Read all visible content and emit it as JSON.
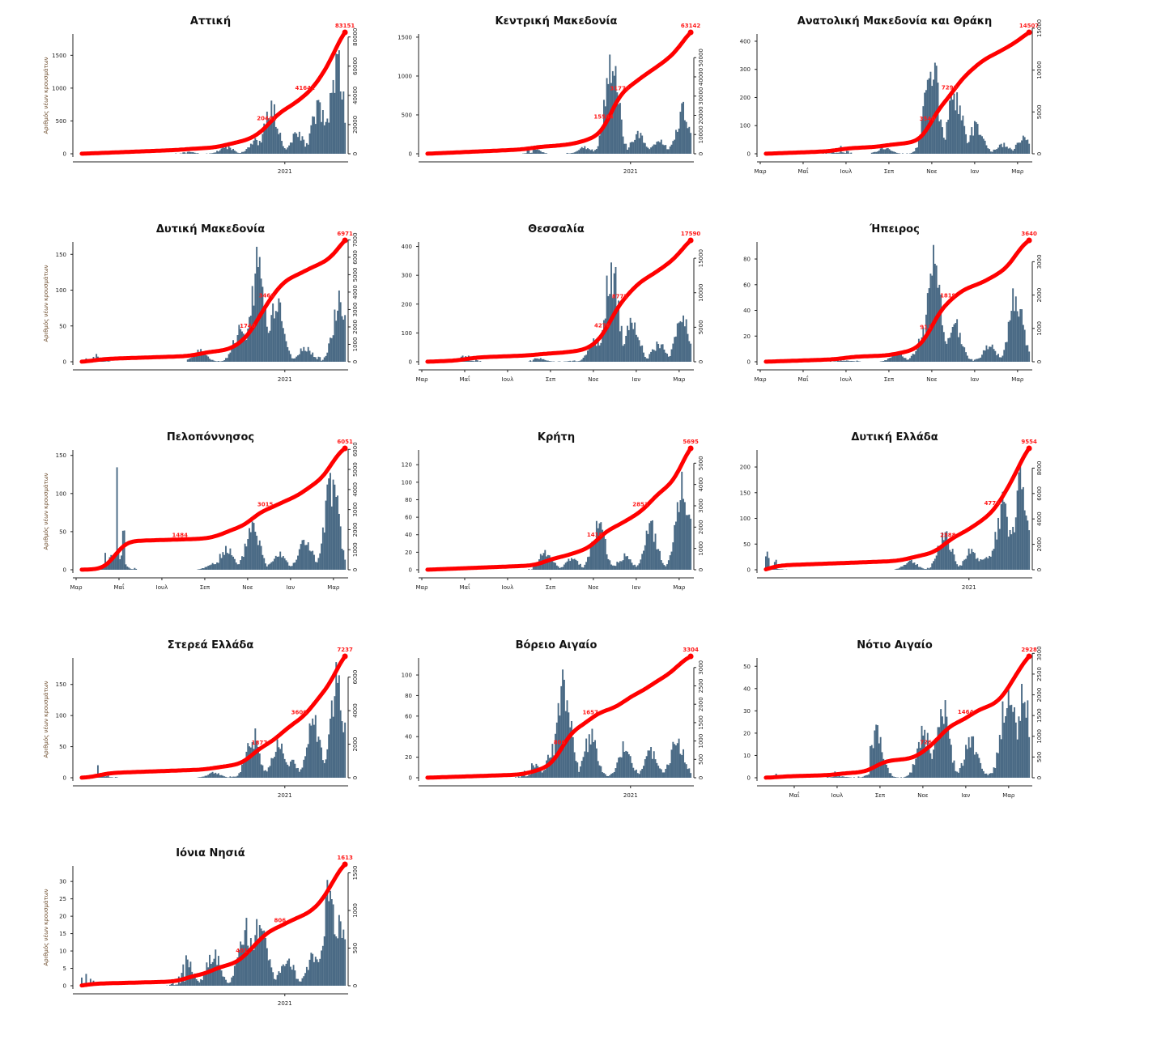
{
  "colors": {
    "bars": "#4a6a85",
    "cumulative_line": "#ff0000",
    "label": "#ff1a1a"
  },
  "chart_data": [
    {
      "type": "bar+line",
      "title": "Αττική",
      "ylabel": "Αριθμός νέων κρουσμάτων",
      "xticks": [
        "2021"
      ],
      "xtick_mode": "year",
      "left_ticks": [
        0,
        500,
        1000,
        1500
      ],
      "left_max": 1800,
      "right_ticks": [
        0,
        20000,
        40000,
        60000,
        80000
      ],
      "right_max": 83151,
      "labels": [
        "20441",
        "41641",
        "83151"
      ],
      "peaks": [
        [
          0.4,
          40
        ],
        [
          0.55,
          130
        ],
        [
          0.66,
          250
        ],
        [
          0.72,
          860
        ],
        [
          0.82,
          380
        ],
        [
          0.9,
          900
        ],
        [
          0.97,
          1700
        ]
      ]
    },
    {
      "type": "bar+line",
      "title": "Κεντρική Μακεδονία",
      "ylabel": "",
      "xticks": [
        "2021"
      ],
      "xtick_mode": "year",
      "left_ticks": [
        0,
        500,
        1000,
        1500
      ],
      "left_max": 1520,
      "right_ticks": [
        0,
        10000,
        20000,
        30000,
        40000,
        50000
      ],
      "right_max": 63142,
      "labels": [
        "15584",
        "31770",
        "63142"
      ],
      "peaks": [
        [
          0.4,
          80
        ],
        [
          0.6,
          100
        ],
        [
          0.7,
          1500
        ],
        [
          0.8,
          300
        ],
        [
          0.88,
          200
        ],
        [
          0.97,
          680
        ]
      ]
    },
    {
      "type": "bar+line",
      "title": "Ανατολική Μακεδονία και Θράκη",
      "ylabel": "",
      "xticks": [
        "Μαρ",
        "Μαΐ",
        "Ιουλ",
        "Σεπ",
        "Νοε",
        "Ιαν",
        "Μαρ"
      ],
      "xtick_mode": "months",
      "left_ticks": [
        0,
        100,
        200,
        300,
        400
      ],
      "left_max": 420,
      "right_ticks": [
        0,
        5000,
        10000,
        15000
      ],
      "right_max": 14507,
      "labels": [
        "3540",
        "7290",
        "14507"
      ],
      "peaks": [
        [
          0.28,
          30
        ],
        [
          0.45,
          25
        ],
        [
          0.63,
          410
        ],
        [
          0.72,
          280
        ],
        [
          0.8,
          130
        ],
        [
          0.9,
          40
        ],
        [
          0.98,
          80
        ]
      ]
    },
    {
      "type": "bar+line",
      "title": "Δυτική Μακεδονία",
      "ylabel": "Αριθμός νέων κρουσμάτων",
      "xticks": [
        "2021"
      ],
      "xtick_mode": "year",
      "left_ticks": [
        0,
        50,
        100,
        150
      ],
      "left_max": 165,
      "right_ticks": [
        0,
        1000,
        2000,
        3000,
        4000,
        5000,
        6000,
        7000
      ],
      "right_max": 6971,
      "labels": [
        "1740",
        "3460",
        "6971"
      ],
      "peaks": [
        [
          0.05,
          12
        ],
        [
          0.45,
          20
        ],
        [
          0.6,
          55
        ],
        [
          0.67,
          165
        ],
        [
          0.74,
          110
        ],
        [
          0.85,
          25
        ],
        [
          0.98,
          105
        ]
      ]
    },
    {
      "type": "bar+line",
      "title": "Θεσσαλία",
      "ylabel": "",
      "xticks": [
        "Μαρ",
        "Μαΐ",
        "Ιουλ",
        "Σεπ",
        "Νοε",
        "Ιαν",
        "Μαρ"
      ],
      "xtick_mode": "months",
      "left_ticks": [
        0,
        100,
        200,
        300,
        400
      ],
      "left_max": 410,
      "right_ticks": [
        0,
        5000,
        10000,
        15000
      ],
      "right_max": 17590,
      "labels": [
        "4276",
        "8775",
        "17590"
      ],
      "peaks": [
        [
          0.15,
          30
        ],
        [
          0.42,
          15
        ],
        [
          0.64,
          100
        ],
        [
          0.7,
          405
        ],
        [
          0.78,
          180
        ],
        [
          0.88,
          80
        ],
        [
          0.97,
          200
        ]
      ]
    },
    {
      "type": "bar+line",
      "title": "Ήπειρος",
      "ylabel": "",
      "xticks": [
        "Μαρ",
        "Μαΐ",
        "Ιουλ",
        "Σεπ",
        "Νοε",
        "Ιαν",
        "Μαρ"
      ],
      "xtick_mode": "months",
      "left_ticks": [
        0,
        20,
        40,
        60,
        80
      ],
      "left_max": 92,
      "right_ticks": [
        0,
        1000,
        2000,
        3000
      ],
      "right_max": 3640,
      "labels": [
        "911",
        "1819",
        "3640"
      ],
      "peaks": [
        [
          0.3,
          6
        ],
        [
          0.5,
          8
        ],
        [
          0.6,
          30
        ],
        [
          0.64,
          92
        ],
        [
          0.72,
          35
        ],
        [
          0.85,
          15
        ],
        [
          0.95,
          68
        ]
      ]
    },
    {
      "type": "bar+line",
      "title": "Πελοπόννησος",
      "ylabel": "Αριθμός νέων κρουσμάτων",
      "xticks": [
        "Μαρ",
        "Μαΐ",
        "Ιουλ",
        "Σεπ",
        "Νοε",
        "Ιαν",
        "Μαρ"
      ],
      "xtick_mode": "months",
      "left_ticks": [
        0,
        50,
        100,
        150
      ],
      "left_max": 155,
      "right_ticks": [
        0,
        1000,
        2000,
        3000,
        4000,
        5000,
        6000
      ],
      "right_max": 6051,
      "labels": [
        "1484",
        "3015",
        "6051"
      ],
      "peaks": [
        [
          0.13,
          150
        ],
        [
          0.5,
          10
        ],
        [
          0.55,
          35
        ],
        [
          0.65,
          78
        ],
        [
          0.75,
          30
        ],
        [
          0.85,
          50
        ],
        [
          0.95,
          147
        ]
      ]
    },
    {
      "type": "bar+line",
      "title": "Κρήτη",
      "ylabel": "",
      "xticks": [
        "Μαρ",
        "Μαΐ",
        "Ιουλ",
        "Σεπ",
        "Νοε",
        "Ιαν",
        "Μαρ"
      ],
      "xtick_mode": "months",
      "left_ticks": [
        0,
        20,
        40,
        60,
        80,
        100,
        120
      ],
      "left_max": 135,
      "right_ticks": [
        0,
        1000,
        2000,
        3000,
        4000,
        5000
      ],
      "right_max": 5695,
      "labels": [
        "1418",
        "2853",
        "5695"
      ],
      "peaks": [
        [
          0.45,
          26
        ],
        [
          0.55,
          15
        ],
        [
          0.65,
          62
        ],
        [
          0.75,
          20
        ],
        [
          0.78,
          5
        ],
        [
          0.85,
          58
        ],
        [
          0.97,
          130
        ]
      ]
    },
    {
      "type": "bar+line",
      "title": "Δυτική Ελλάδα",
      "ylabel": "",
      "xticks": [
        "2021"
      ],
      "xtick_mode": "year",
      "left_ticks": [
        0,
        50,
        100,
        150,
        200
      ],
      "left_max": 230,
      "right_ticks": [
        0,
        2000,
        4000,
        6000,
        8000
      ],
      "right_max": 9554,
      "labels": [
        "2388",
        "4779",
        "9554"
      ],
      "peaks": [
        [
          0.01,
          40
        ],
        [
          0.55,
          20
        ],
        [
          0.68,
          88
        ],
        [
          0.78,
          45
        ],
        [
          0.84,
          35
        ],
        [
          0.9,
          155
        ],
        [
          0.97,
          220
        ]
      ]
    },
    {
      "type": "bar+line",
      "title": "Στερεά Ελλάδα",
      "ylabel": "Αριθμός νέων κρουσμάτων",
      "xticks": [
        "2021"
      ],
      "xtick_mode": "year",
      "left_ticks": [
        0,
        50,
        100,
        150
      ],
      "left_max": 190,
      "right_ticks": [
        0,
        2000,
        4000,
        6000
      ],
      "right_max": 7237,
      "labels": [
        "1877",
        "3600",
        "7237"
      ],
      "peaks": [
        [
          0.07,
          22
        ],
        [
          0.5,
          10
        ],
        [
          0.65,
          85
        ],
        [
          0.75,
          65
        ],
        [
          0.8,
          30
        ],
        [
          0.88,
          110
        ],
        [
          0.97,
          190
        ]
      ]
    },
    {
      "type": "bar+line",
      "title": "Βόρειο Αιγαίο",
      "ylabel": "",
      "xticks": [
        "2021"
      ],
      "xtick_mode": "year",
      "left_ticks": [
        0,
        20,
        40,
        60,
        80,
        100
      ],
      "left_max": 115,
      "right_ticks": [
        0,
        500,
        1000,
        1500,
        2000,
        2500,
        3000
      ],
      "right_max": 3304,
      "labels": [
        "806",
        "1657",
        "3304"
      ],
      "peaks": [
        [
          0.4,
          18
        ],
        [
          0.48,
          34
        ],
        [
          0.52,
          114
        ],
        [
          0.62,
          49
        ],
        [
          0.75,
          38
        ],
        [
          0.85,
          30
        ],
        [
          0.95,
          46
        ]
      ]
    },
    {
      "type": "bar+line",
      "title": "Νότιο Αιγαίο",
      "ylabel": "",
      "xticks": [
        "Μαΐ",
        "Ιουλ",
        "Σεπ",
        "Νοε",
        "Ιαν",
        "Μαρ"
      ],
      "xtick_mode": "months_from_apr",
      "left_ticks": [
        0,
        10,
        20,
        30,
        40,
        50
      ],
      "left_max": 53,
      "right_ticks": [
        0,
        500,
        1000,
        1500,
        2000,
        2500,
        3000
      ],
      "right_max": 2928,
      "labels": [
        "726",
        "1464",
        "2928"
      ],
      "peaks": [
        [
          0.05,
          2
        ],
        [
          0.28,
          4
        ],
        [
          0.42,
          25
        ],
        [
          0.6,
          25
        ],
        [
          0.67,
          41
        ],
        [
          0.78,
          21
        ],
        [
          0.92,
          51
        ],
        [
          0.98,
          45
        ]
      ]
    },
    {
      "type": "bar+line",
      "title": "Ιόνια Νησιά",
      "ylabel": "Αριθμός νέων κρουσμάτων",
      "xticks": [
        "2021"
      ],
      "xtick_mode": "year",
      "left_ticks": [
        0,
        5,
        10,
        15,
        20,
        25,
        30
      ],
      "left_max": 34,
      "right_ticks": [
        0,
        500,
        1000,
        1500
      ],
      "right_max": 1613,
      "labels": [
        "401",
        "806",
        "1613"
      ],
      "peaks": [
        [
          0.01,
          4
        ],
        [
          0.4,
          9
        ],
        [
          0.5,
          12
        ],
        [
          0.62,
          21
        ],
        [
          0.68,
          24
        ],
        [
          0.78,
          10
        ],
        [
          0.88,
          11
        ],
        [
          0.94,
          33
        ],
        [
          0.98,
          23
        ]
      ]
    }
  ]
}
